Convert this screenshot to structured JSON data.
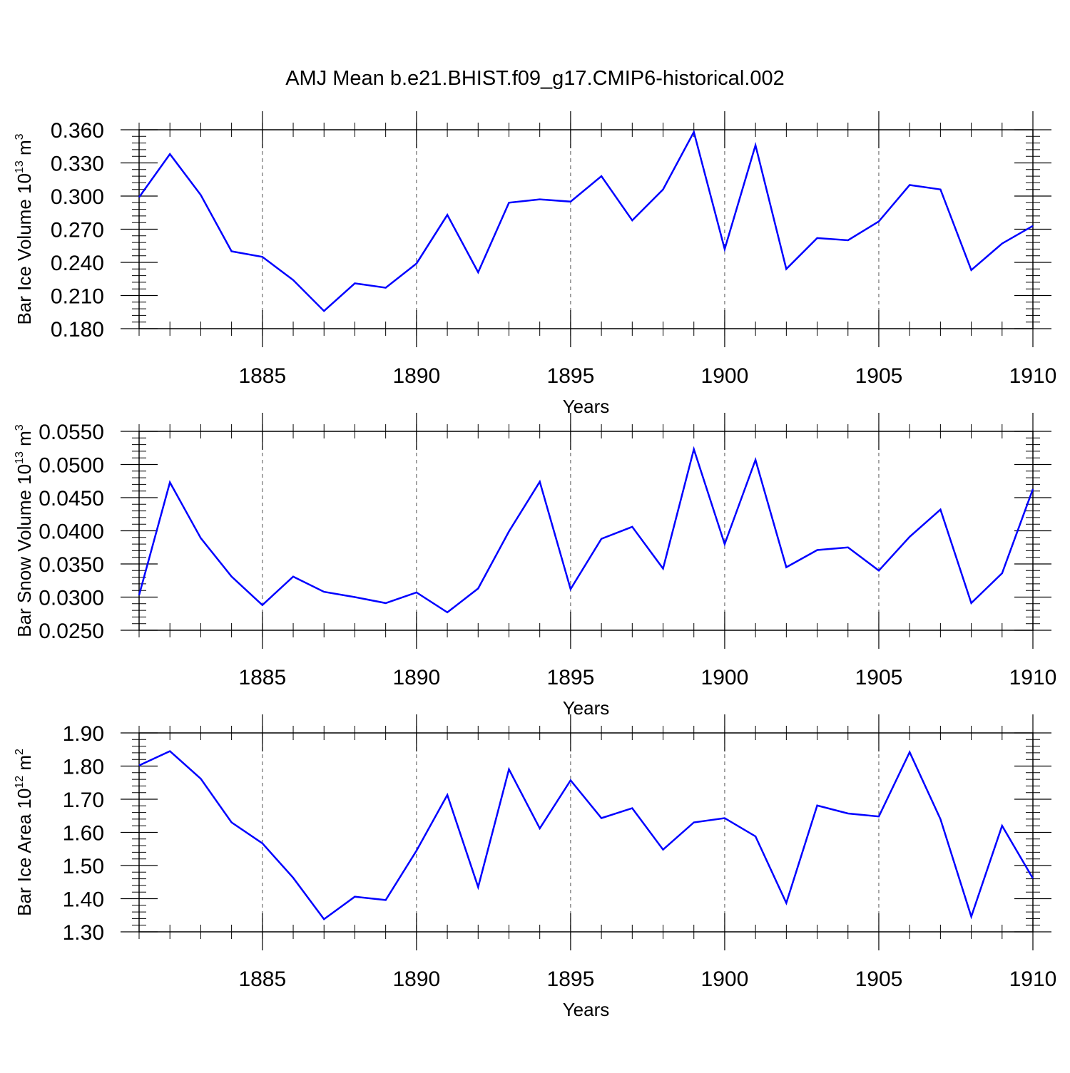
{
  "title": "AMJ Mean b.e21.BHIST.f09_g17.CMIP6-historical.002",
  "colors": {
    "line": "#0000ff",
    "axis": "#000000",
    "grid": "#555555"
  },
  "chart_data": [
    {
      "type": "line",
      "ylabel": {
        "main": "Bar Ice Volume 10",
        "sup": "13",
        "unit": " m",
        "unit_sup": "3"
      },
      "xlabel": "Years",
      "xlim": [
        1881,
        1910
      ],
      "ylim": [
        0.18,
        0.36
      ],
      "yticks": [
        0.18,
        0.21,
        0.24,
        0.27,
        0.3,
        0.33,
        0.36
      ],
      "ytick_labels": [
        "0.180",
        "0.210",
        "0.240",
        "0.270",
        "0.300",
        "0.330",
        "0.360"
      ],
      "xticks": [
        1885,
        1890,
        1895,
        1900,
        1905,
        1910
      ],
      "xtick_labels": [
        "1885",
        "1890",
        "1895",
        "1900",
        "1905",
        "1910"
      ],
      "grid": "vertical-dashed",
      "x": [
        1881,
        1882,
        1883,
        1884,
        1885,
        1886,
        1887,
        1888,
        1889,
        1890,
        1891,
        1892,
        1893,
        1894,
        1895,
        1896,
        1897,
        1898,
        1899,
        1900,
        1901,
        1902,
        1903,
        1904,
        1905,
        1906,
        1907,
        1908,
        1909,
        1910
      ],
      "values": [
        0.299,
        0.338,
        0.301,
        0.25,
        0.245,
        0.224,
        0.196,
        0.221,
        0.217,
        0.239,
        0.283,
        0.231,
        0.294,
        0.297,
        0.295,
        0.318,
        0.278,
        0.306,
        0.358,
        0.252,
        0.346,
        0.234,
        0.262,
        0.26,
        0.277,
        0.31,
        0.306,
        0.233,
        0.257,
        0.273
      ]
    },
    {
      "type": "line",
      "ylabel": {
        "main": "Bar Snow Volume 10",
        "sup": "13",
        "unit": " m",
        "unit_sup": "3"
      },
      "xlabel": "Years",
      "xlim": [
        1881,
        1910
      ],
      "ylim": [
        0.025,
        0.055
      ],
      "yticks": [
        0.025,
        0.03,
        0.035,
        0.04,
        0.045,
        0.05,
        0.055
      ],
      "ytick_labels": [
        "0.0250",
        "0.0300",
        "0.0350",
        "0.0400",
        "0.0450",
        "0.0500",
        "0.0550"
      ],
      "xticks": [
        1885,
        1890,
        1895,
        1900,
        1905,
        1910
      ],
      "xtick_labels": [
        "1885",
        "1890",
        "1895",
        "1900",
        "1905",
        "1910"
      ],
      "grid": "vertical-dashed",
      "x": [
        1881,
        1882,
        1883,
        1884,
        1885,
        1886,
        1887,
        1888,
        1889,
        1890,
        1891,
        1892,
        1893,
        1894,
        1895,
        1896,
        1897,
        1898,
        1899,
        1900,
        1901,
        1902,
        1903,
        1904,
        1905,
        1906,
        1907,
        1908,
        1909,
        1910
      ],
      "values": [
        0.0303,
        0.0473,
        0.0389,
        0.0331,
        0.0288,
        0.0331,
        0.0308,
        0.03,
        0.0291,
        0.0307,
        0.0277,
        0.0313,
        0.0399,
        0.0474,
        0.0312,
        0.0388,
        0.0406,
        0.0343,
        0.0523,
        0.038,
        0.0507,
        0.0345,
        0.0371,
        0.0375,
        0.034,
        0.0391,
        0.0432,
        0.0291,
        0.0336,
        0.0463
      ]
    },
    {
      "type": "line",
      "ylabel": {
        "main": "Bar Ice Area 10",
        "sup": "12",
        "unit": " m",
        "unit_sup": "2"
      },
      "xlabel": "Years",
      "xlim": [
        1881,
        1910
      ],
      "ylim": [
        1.3,
        1.9
      ],
      "yticks": [
        1.3,
        1.4,
        1.5,
        1.6,
        1.7,
        1.8,
        1.9
      ],
      "ytick_labels": [
        "1.30",
        "1.40",
        "1.50",
        "1.60",
        "1.70",
        "1.80",
        "1.90"
      ],
      "xticks": [
        1885,
        1890,
        1895,
        1900,
        1905,
        1910
      ],
      "xtick_labels": [
        "1885",
        "1890",
        "1895",
        "1900",
        "1905",
        "1910"
      ],
      "grid": "vertical-dashed",
      "x": [
        1881,
        1882,
        1883,
        1884,
        1885,
        1886,
        1887,
        1888,
        1889,
        1890,
        1891,
        1892,
        1893,
        1894,
        1895,
        1896,
        1897,
        1898,
        1899,
        1900,
        1901,
        1902,
        1903,
        1904,
        1905,
        1906,
        1907,
        1908,
        1909,
        1910
      ],
      "values": [
        1.802,
        1.845,
        1.762,
        1.63,
        1.567,
        1.463,
        1.338,
        1.406,
        1.396,
        1.545,
        1.713,
        1.435,
        1.79,
        1.612,
        1.757,
        1.643,
        1.673,
        1.548,
        1.63,
        1.643,
        1.588,
        1.387,
        1.681,
        1.657,
        1.648,
        1.842,
        1.64,
        1.346,
        1.62,
        1.461
      ]
    }
  ]
}
